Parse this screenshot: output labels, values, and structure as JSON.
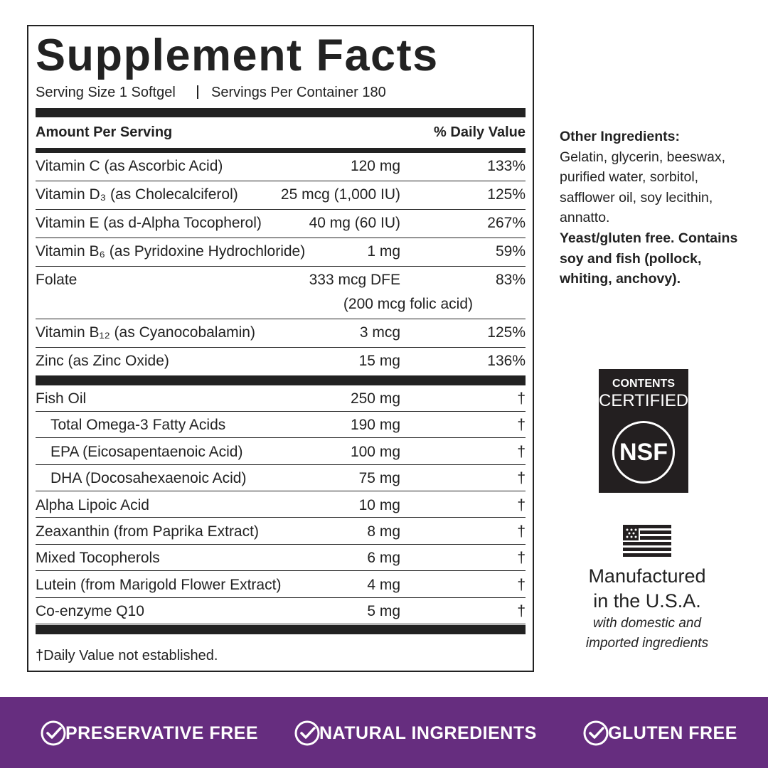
{
  "facts": {
    "title": "Supplement Facts",
    "serving_size": "Serving Size 1 Softgel",
    "servings_per_container": "Servings Per Container 180",
    "amount_header": "Amount Per Serving",
    "dv_header": "% Daily Value",
    "vitamins": [
      {
        "name": "Vitamin C (as Ascorbic Acid)",
        "amount": "120 mg",
        "dv": "133%"
      },
      {
        "name": "Vitamin D₃ (as Cholecalciferol)",
        "amount": "25 mcg (1,000 IU)",
        "dv": "125%"
      },
      {
        "name": "Vitamin E (as d-Alpha Tocopherol)",
        "amount": "40 mg (60 IU)",
        "dv": "267%"
      },
      {
        "name": "Vitamin B₆ (as Pyridoxine Hydrochloride)",
        "amount": "1 mg",
        "dv": "59%"
      },
      {
        "name": "Folate",
        "amount": "333 mcg DFE",
        "amount_note": "(200 mcg folic acid)",
        "dv": "83%"
      },
      {
        "name": "Vitamin B₁₂ (as Cyanocobalamin)",
        "amount": "3 mcg",
        "dv": "125%"
      },
      {
        "name": "Zinc (as Zinc Oxide)",
        "amount": "15 mg",
        "dv": "136%"
      }
    ],
    "others": [
      {
        "name": "Fish Oil",
        "amount": "250 mg",
        "dv": "†"
      },
      {
        "name": "Total Omega-3 Fatty Acids",
        "amount": "190 mg",
        "dv": "†",
        "indent": true
      },
      {
        "name": "EPA (Eicosapentaenoic Acid)",
        "amount": "100 mg",
        "dv": "†",
        "indent": true
      },
      {
        "name": "DHA (Docosahexaenoic Acid)",
        "amount": "75 mg",
        "dv": "†",
        "indent": true
      },
      {
        "name": "Alpha Lipoic Acid",
        "amount": "10 mg",
        "dv": "†"
      },
      {
        "name": "Zeaxanthin (from Paprika Extract)",
        "amount": "8 mg",
        "dv": "†"
      },
      {
        "name": "Mixed Tocopherols",
        "amount": "6 mg",
        "dv": "†"
      },
      {
        "name": "Lutein (from Marigold Flower Extract)",
        "amount": "4 mg",
        "dv": "†"
      },
      {
        "name": "Co-enzyme Q10",
        "amount": "5 mg",
        "dv": "†"
      }
    ],
    "footnote": "†Daily Value not established."
  },
  "other_ingredients": {
    "title": "Other Ingredients:",
    "text": "Gelatin, glycerin, beeswax, purified water, sorbitol, safflower oil, soy lecithin, annatto.",
    "notice": "Yeast/gluten free. Contains soy and fish (pollock, whiting, anchovy)."
  },
  "badge": {
    "line1": "CONTENTS",
    "line2": "CERTIFIED",
    "logo": "NSF"
  },
  "made_in": {
    "line1": "Manufactured",
    "line2": "in the U.S.A.",
    "note1": "with domestic and",
    "note2": "imported ingredients"
  },
  "banner": [
    "PRESERVATIVE FREE",
    "NATURAL INGREDIENTS",
    "GLUTEN FREE"
  ]
}
